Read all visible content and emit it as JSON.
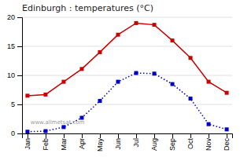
{
  "chart_data": {
    "type": "line",
    "title": "Edinburgh : temperatures (°C)",
    "categories": [
      "Jan",
      "Feb",
      "Mar",
      "Apr",
      "May",
      "Jun",
      "Jul",
      "Aug",
      "Sep",
      "Oct",
      "Nov",
      "Dec"
    ],
    "series": [
      {
        "color": "#cc0000",
        "marker": "square",
        "line_style": "solid",
        "values": [
          6.5,
          6.7,
          8.9,
          11.1,
          14.0,
          17.0,
          19.0,
          18.7,
          16.0,
          13.0,
          8.9,
          7.0
        ]
      },
      {
        "color": "#0000cc",
        "marker": "square",
        "line_style": "dotted",
        "values": [
          0.3,
          0.4,
          1.1,
          2.7,
          5.6,
          8.9,
          10.4,
          10.3,
          8.5,
          6.0,
          1.6,
          0.7
        ]
      }
    ],
    "ylim": [
      0,
      20
    ],
    "yticks": [
      0,
      5,
      10,
      15,
      20
    ],
    "grid": true,
    "annotations": [
      "www.allmetsat.com"
    ]
  }
}
